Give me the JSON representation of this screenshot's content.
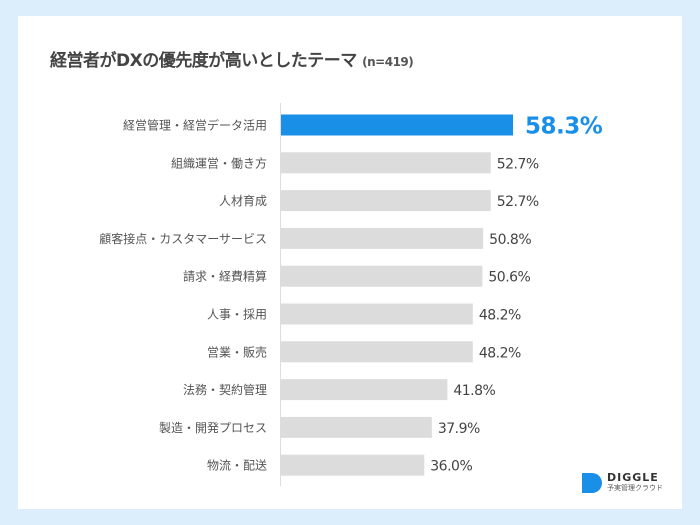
{
  "chart_data": {
    "type": "bar",
    "orientation": "horizontal",
    "title": "経営者がDXの優先度が高いとしたテーマ",
    "subtitle": "(n=419)",
    "categories": [
      "経営管理・経営データ活用",
      "組織運営・働き方",
      "人材育成",
      "顧客接点・カスタマーサービス",
      "請求・経費精算",
      "人事・採用",
      "営業・販売",
      "法務・契約管理",
      "製造・開発プロセス",
      "物流・配送"
    ],
    "values": [
      58.3,
      52.7,
      52.7,
      50.8,
      50.6,
      48.2,
      48.2,
      41.8,
      37.9,
      36.0
    ],
    "labels": [
      "58.3%",
      "52.7%",
      "52.7%",
      "50.8%",
      "50.6%",
      "48.2%",
      "48.2%",
      "41.8%",
      "37.9%",
      "36.0%"
    ],
    "unit": "%",
    "xlim": [
      0,
      100
    ],
    "grid": false,
    "highlight_index": 0,
    "colors": {
      "highlight": "#1a8fe8",
      "default": "#dcdcdc",
      "background": "#dcedfb"
    }
  },
  "logo": {
    "name": "DIGGLE",
    "tagline": "予実管理クラウド"
  }
}
